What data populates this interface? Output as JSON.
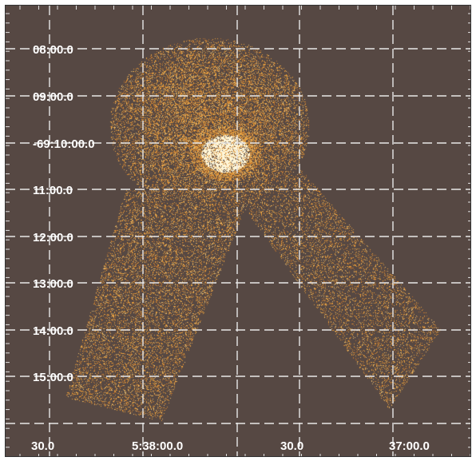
{
  "image": {
    "description_colors": {
      "background": "#564843",
      "emission": "#f5a53a",
      "bright_core": "#fff6d8",
      "grid": "#e8e8e8"
    }
  },
  "coordinate_grid": {
    "dec_labels": [
      "08:00.0",
      "09:00.0",
      "-69:10:00.0",
      "11:00.0",
      "12:00.0",
      "13:00.0",
      "14:00.0",
      "15:00.0"
    ],
    "ra_labels": [
      "30.0",
      "5:38:00.0",
      "30.0",
      "37:00.0"
    ]
  }
}
